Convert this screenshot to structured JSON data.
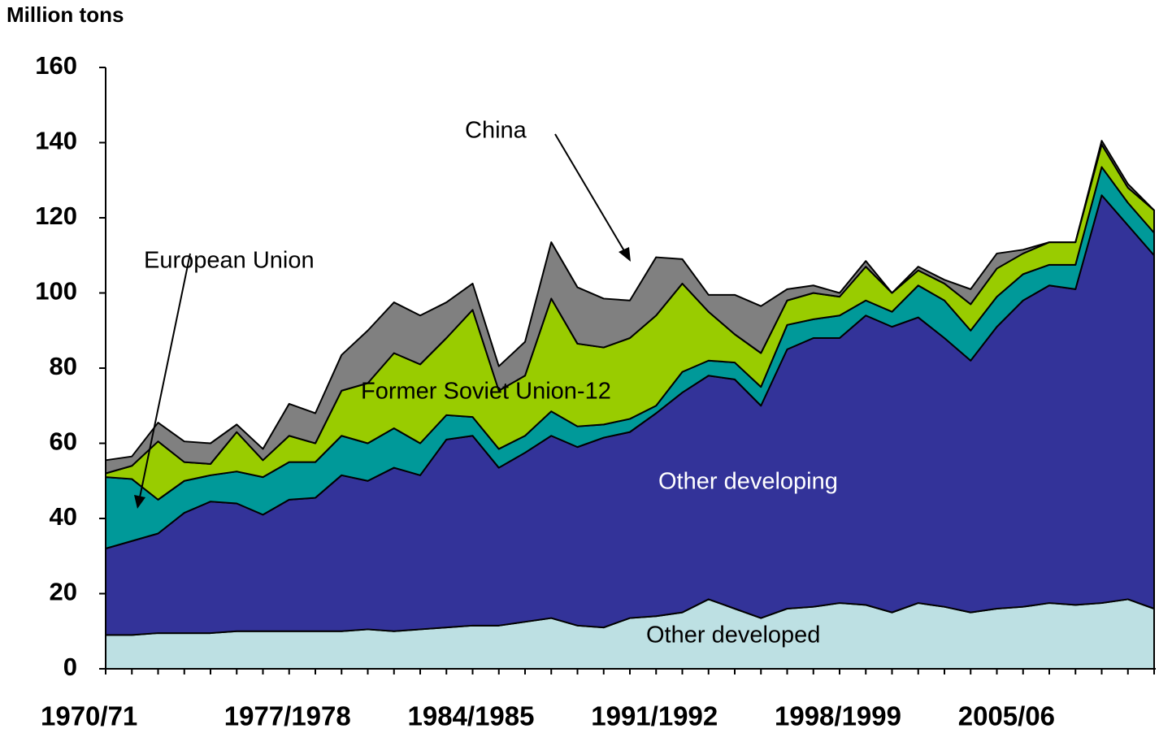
{
  "chart_data": {
    "type": "stacked_area",
    "y_label": "Million tons",
    "categories": [
      "1970/71",
      null,
      null,
      null,
      null,
      null,
      null,
      "1977/1978",
      null,
      null,
      null,
      null,
      null,
      null,
      "1984/1985",
      null,
      null,
      null,
      null,
      null,
      null,
      "1991/1992",
      null,
      null,
      null,
      null,
      null,
      null,
      "1998/1999",
      null,
      null,
      null,
      null,
      null,
      null,
      "2005/06",
      null,
      null,
      null,
      null,
      null
    ],
    "ylim": [
      0,
      160
    ],
    "yticks": [
      0,
      20,
      40,
      60,
      80,
      100,
      120,
      140,
      160
    ],
    "grid": false,
    "series": [
      {
        "name": "Other developed",
        "color": "#bde0e3",
        "values": [
          9,
          9,
          9.5,
          9.5,
          9.5,
          10,
          10,
          10,
          10,
          10,
          10.5,
          10,
          10.5,
          11,
          11.5,
          11.5,
          12.5,
          13.5,
          11.5,
          11,
          13.5,
          14,
          15,
          18.5,
          16,
          13.5,
          16,
          16.5,
          17.5,
          17,
          15,
          17.5,
          16.5,
          15,
          16,
          16.5,
          17.5,
          17,
          17.5,
          18.5,
          16
        ]
      },
      {
        "name": "Other developing",
        "color": "#333399",
        "values": [
          23,
          25,
          26.5,
          32,
          35,
          34,
          31,
          35,
          35.5,
          41.5,
          39.5,
          43.5,
          41,
          50,
          50.5,
          42,
          45,
          48.5,
          47.5,
          50.5,
          49.5,
          54,
          58.5,
          59.5,
          61,
          56.5,
          69,
          71.5,
          70.5,
          77,
          76,
          76,
          71.5,
          67,
          75,
          81.5,
          84.5,
          84,
          108.5,
          99.5,
          94
        ]
      },
      {
        "name": "European Union",
        "color": "#009999",
        "values": [
          19,
          16.5,
          9,
          8.5,
          7,
          8.5,
          10,
          10,
          9.5,
          10.5,
          10,
          10.5,
          8.5,
          6.5,
          5,
          5,
          4.5,
          6.5,
          5.5,
          3.5,
          3.5,
          2,
          5.5,
          4,
          4.5,
          5,
          6.5,
          5,
          6,
          4,
          4,
          8.5,
          10,
          8,
          8,
          7,
          5.5,
          6.5,
          7.5,
          6,
          6
        ]
      },
      {
        "name": "Former Soviet Union-12",
        "color": "#99cc00",
        "values": [
          1,
          3.5,
          15.5,
          5,
          3,
          10.5,
          4.5,
          7,
          5,
          12,
          16,
          20,
          21,
          20.5,
          28.5,
          15.5,
          16,
          30,
          22,
          20.5,
          21.5,
          24,
          23.5,
          13,
          7.5,
          9,
          6.5,
          7,
          5,
          9,
          5,
          4,
          4.5,
          7,
          7.5,
          5.5,
          6,
          6,
          6,
          4,
          6
        ]
      },
      {
        "name": "China",
        "color": "#808080",
        "values": [
          3.5,
          2.5,
          5,
          5.5,
          5.5,
          2,
          3,
          8.5,
          8,
          9.5,
          14,
          13.5,
          13,
          9.5,
          7,
          6.5,
          9,
          15,
          15,
          13,
          10,
          15.5,
          6.5,
          4.5,
          10.5,
          12.5,
          3,
          2,
          1,
          1.5,
          0,
          1,
          1,
          4,
          4,
          1,
          0,
          0,
          1,
          1,
          0
        ]
      }
    ]
  }
}
